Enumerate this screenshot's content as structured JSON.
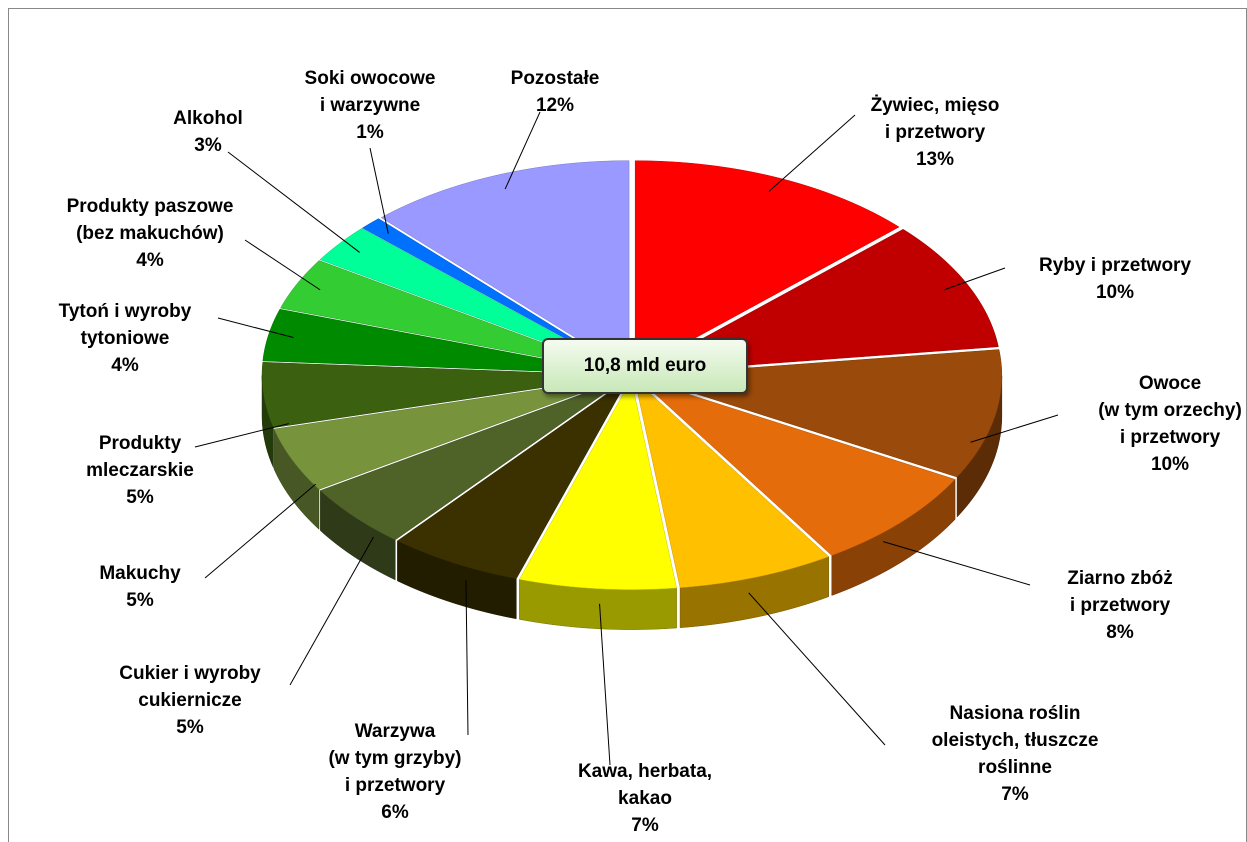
{
  "chart_data": {
    "type": "pie3d",
    "center_label": "10,8 mld euro",
    "categories": [
      "Żywiec, mięso\ni przetwory",
      "Ryby i przetwory",
      "Owoce\n(w tym orzechy)\ni przetwory",
      "Ziarno zbóż\ni przetwory",
      "Nasiona roślin\noleistych, tłuszcze\nroślinne",
      "Kawa, herbata,\nkakao",
      "Warzywa\n(w tym grzyby)\ni przetwory",
      "Cukier i wyroby\ncukiernicze",
      "Makuchy",
      "Produkty\nmleczarskie",
      "Tytoń i wyroby\ntytoniowe",
      "Produkty paszowe\n(bez makuchów)",
      "Alkohol",
      "Soki owocowe\ni warzywne",
      "Pozostałe"
    ],
    "values": [
      13,
      10,
      10,
      8,
      7,
      7,
      6,
      5,
      5,
      5,
      4,
      4,
      3,
      1,
      12
    ],
    "value_labels": [
      "13%",
      "10%",
      "10%",
      "8%",
      "7%",
      "7%",
      "6%",
      "5%",
      "5%",
      "5%",
      "4%",
      "4%",
      "3%",
      "1%",
      "12%"
    ],
    "colors": [
      "#ff0000",
      "#c00000",
      "#9a4a0a",
      "#e46c0a",
      "#ffc000",
      "#ffff00",
      "#3a3000",
      "#4f6228",
      "#77933c",
      "#3a6010",
      "#008a00",
      "#33cc33",
      "#00ff99",
      "#0070ff",
      "#9999ff"
    ]
  }
}
